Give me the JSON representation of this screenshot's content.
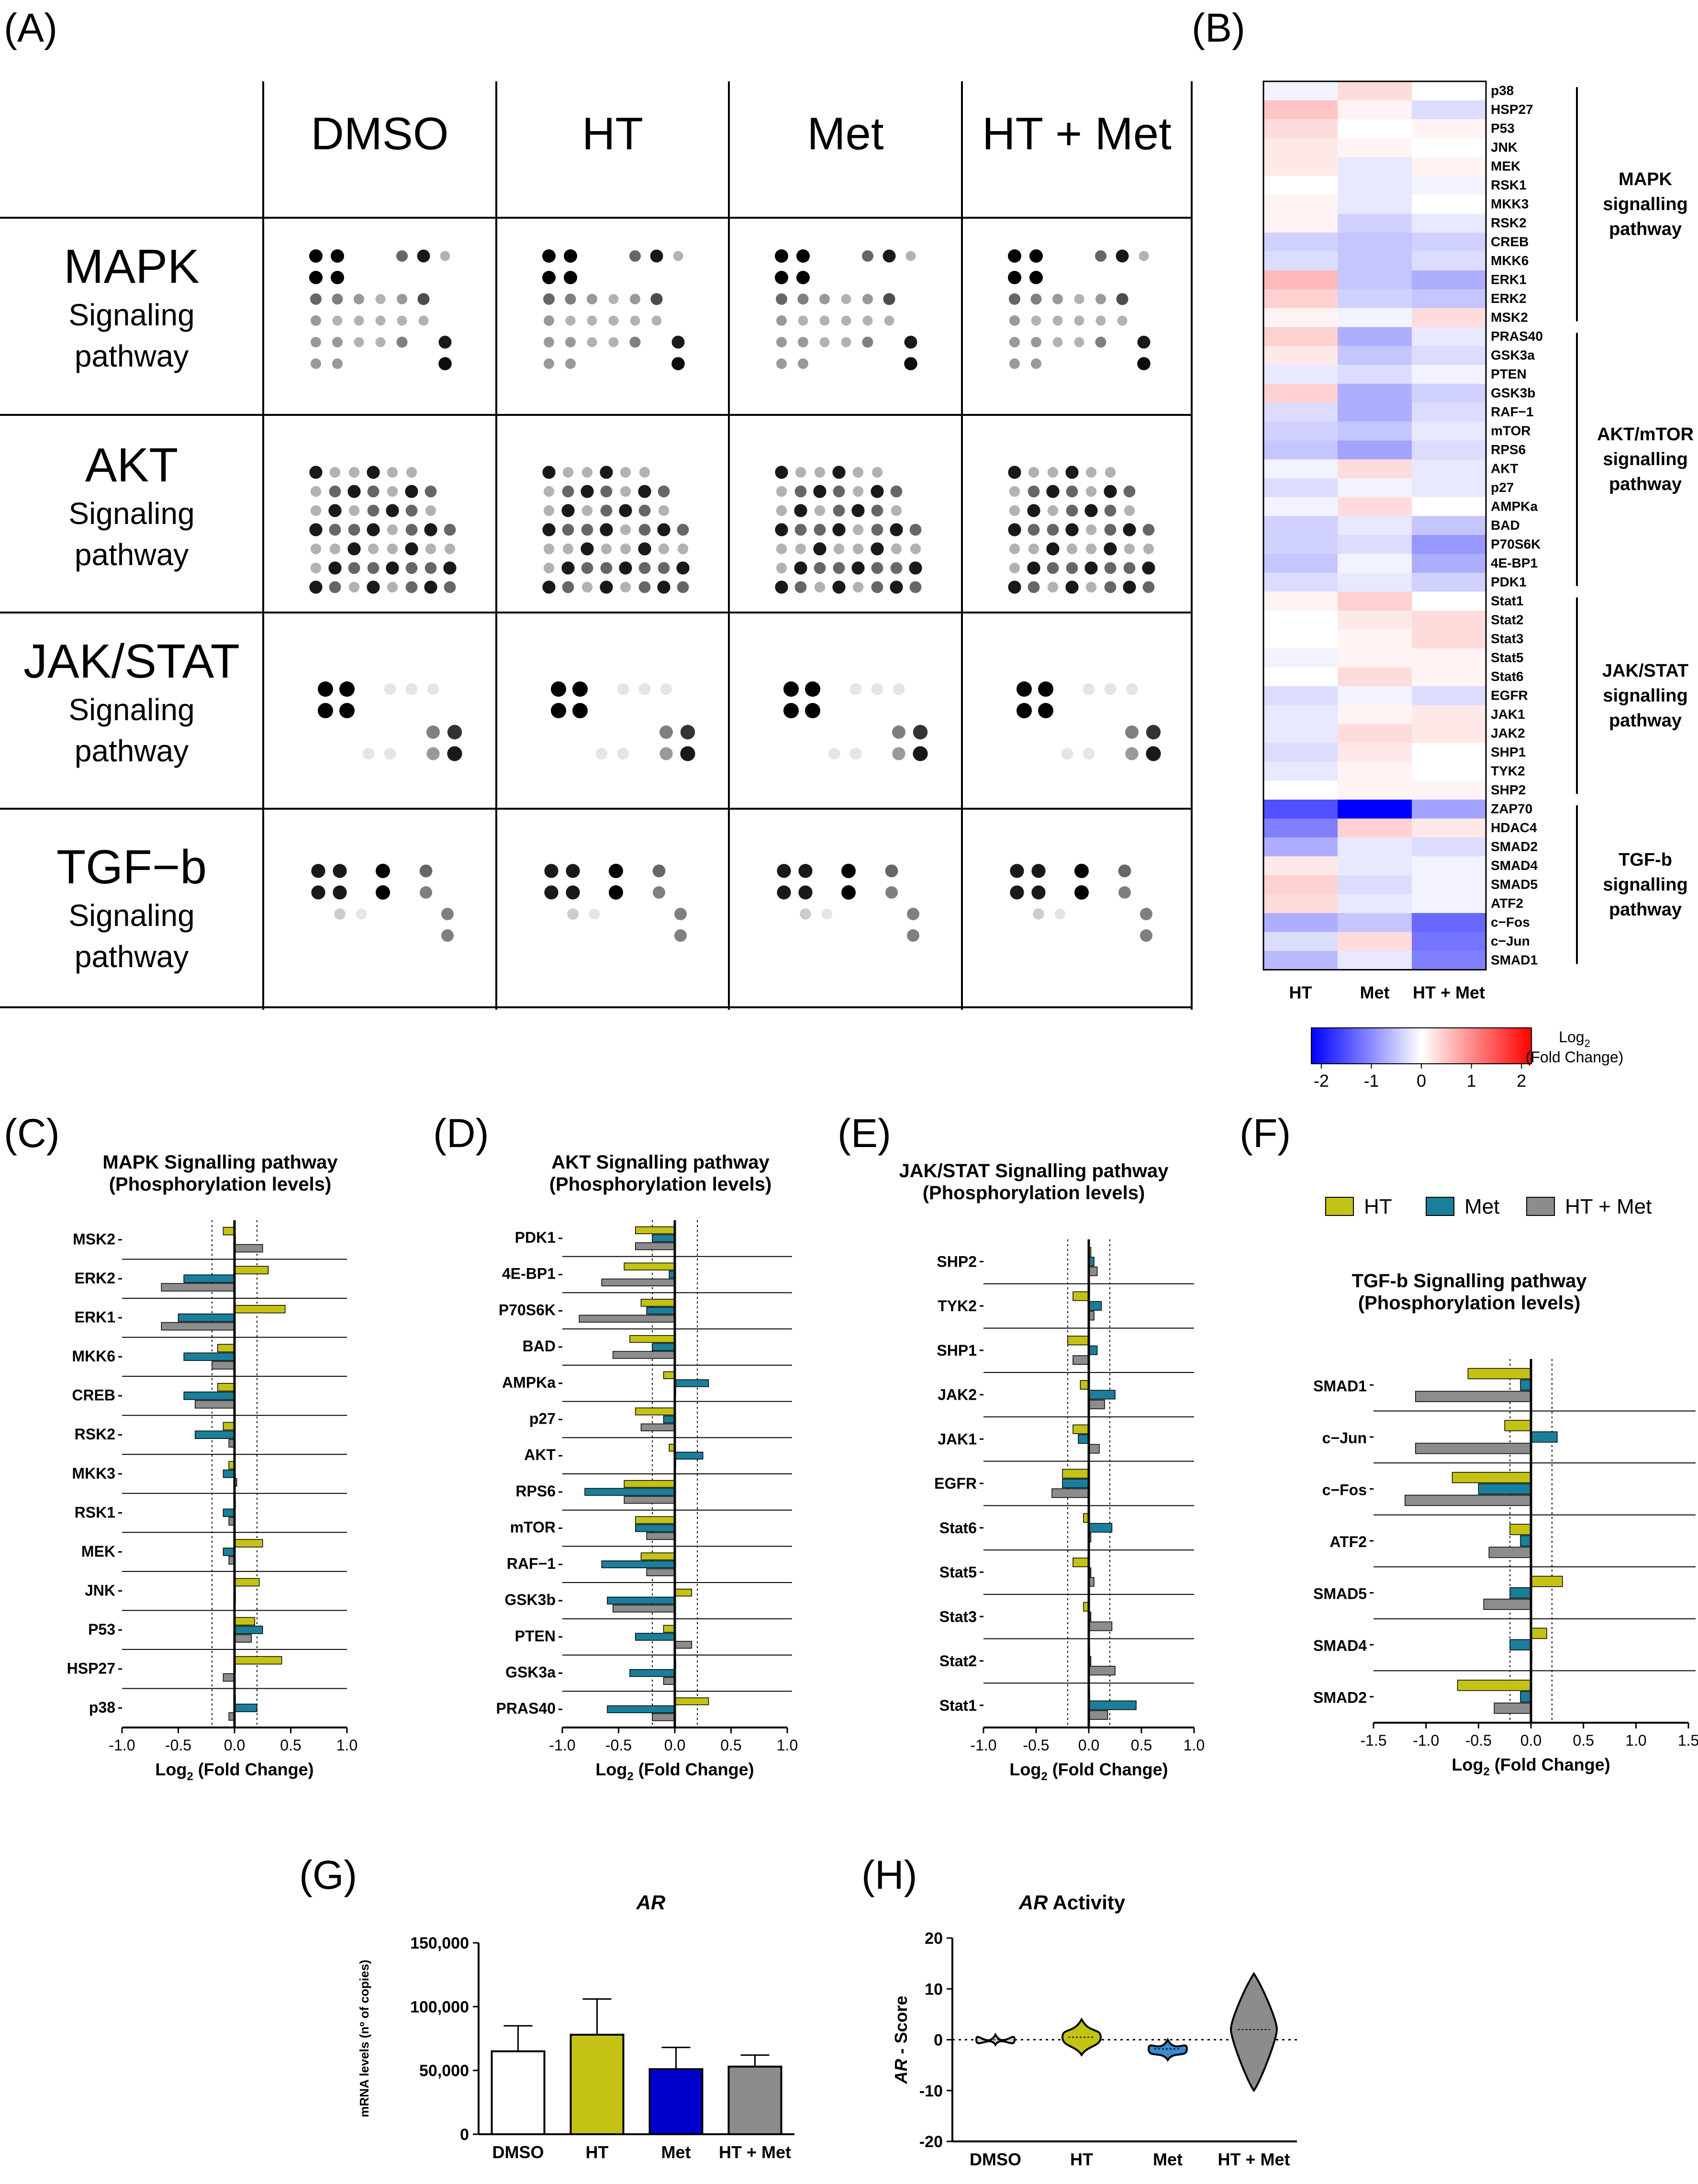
{
  "panels": {
    "A": "(A)",
    "B": "(B)",
    "C": "(C)",
    "D": "(D)",
    "E": "(E)",
    "F": "(F)",
    "G": "(G)",
    "H": "(H)"
  },
  "panelA": {
    "columns": [
      "DMSO",
      "HT",
      "Met",
      "HT + Met"
    ],
    "rows": [
      {
        "name": "MAPK",
        "sub1": "Signaling",
        "sub2": "pathway"
      },
      {
        "name": "AKT",
        "sub1": "Signaling",
        "sub2": "pathway"
      },
      {
        "name": "JAK/STAT",
        "sub1": "Signaling",
        "sub2": "pathway"
      },
      {
        "name": "TGF−b",
        "sub1": "Signaling",
        "sub2": "pathway"
      }
    ]
  },
  "chart_data": [
    {
      "id": "B",
      "type": "heatmap",
      "columns": [
        "HT",
        "Met",
        "HT + Met"
      ],
      "rows": [
        "p38",
        "HSP27",
        "P53",
        "JNK",
        "MEK",
        "RSK1",
        "MKK3",
        "RSK2",
        "CREB",
        "MKK6",
        "ERK1",
        "ERK2",
        "MSK2",
        "PRAS40",
        "GSK3a",
        "PTEN",
        "GSK3b",
        "RAF−1",
        "mTOR",
        "RPS6",
        "AKT",
        "p27",
        "AMPKa",
        "BAD",
        "P70S6K",
        "4E-BP1",
        "PDK1",
        "Stat1",
        "Stat2",
        "Stat3",
        "Stat5",
        "Stat6",
        "EGFR",
        "JAK1",
        "JAK2",
        "SHP1",
        "TYK2",
        "SHP2",
        "ZAP70",
        "HDAC4",
        "SMAD2",
        "SMAD4",
        "SMAD5",
        "ATF2",
        "c−Fos",
        "c−Jun",
        "SMAD1"
      ],
      "values": [
        [
          -0.1,
          0.3,
          0.0
        ],
        [
          0.5,
          0.1,
          -0.3
        ],
        [
          0.3,
          0.0,
          0.1
        ],
        [
          0.2,
          0.1,
          0.0
        ],
        [
          0.2,
          -0.2,
          0.1
        ],
        [
          0.0,
          -0.2,
          -0.1
        ],
        [
          0.1,
          -0.2,
          0.0
        ],
        [
          0.1,
          -0.4,
          -0.2
        ],
        [
          -0.4,
          -0.5,
          -0.4
        ],
        [
          -0.3,
          -0.5,
          -0.3
        ],
        [
          0.6,
          -0.5,
          -0.7
        ],
        [
          0.4,
          -0.4,
          -0.5
        ],
        [
          0.1,
          -0.1,
          0.3
        ],
        [
          0.4,
          -0.7,
          -0.2
        ],
        [
          0.2,
          -0.5,
          -0.3
        ],
        [
          -0.2,
          -0.3,
          -0.1
        ],
        [
          0.4,
          -0.7,
          -0.4
        ],
        [
          -0.3,
          -0.7,
          -0.3
        ],
        [
          -0.4,
          -0.5,
          -0.2
        ],
        [
          -0.5,
          -0.8,
          -0.3
        ],
        [
          -0.1,
          0.3,
          -0.2
        ],
        [
          -0.3,
          -0.1,
          -0.2
        ],
        [
          -0.1,
          0.3,
          0.0
        ],
        [
          -0.4,
          -0.2,
          -0.5
        ],
        [
          -0.4,
          -0.3,
          -0.9
        ],
        [
          -0.5,
          -0.1,
          -0.7
        ],
        [
          -0.3,
          -0.2,
          -0.4
        ],
        [
          0.1,
          0.4,
          0.0
        ],
        [
          0.0,
          0.2,
          0.3
        ],
        [
          0.0,
          0.1,
          0.3
        ],
        [
          -0.1,
          0.1,
          0.1
        ],
        [
          0.0,
          0.3,
          0.1
        ],
        [
          -0.3,
          -0.1,
          -0.3
        ],
        [
          -0.2,
          0.1,
          0.2
        ],
        [
          -0.2,
          0.3,
          0.2
        ],
        [
          -0.3,
          0.2,
          0.0
        ],
        [
          -0.2,
          0.1,
          0.0
        ],
        [
          0.0,
          0.1,
          0.1
        ],
        [
          -1.5,
          -2.2,
          -0.8
        ],
        [
          -1.1,
          0.4,
          0.2
        ],
        [
          -0.7,
          -0.2,
          -0.3
        ],
        [
          0.2,
          -0.2,
          -0.1
        ],
        [
          0.4,
          -0.3,
          -0.1
        ],
        [
          0.3,
          -0.2,
          -0.1
        ],
        [
          -0.7,
          -0.5,
          -1.3
        ],
        [
          -0.3,
          0.3,
          -1.2
        ],
        [
          -0.6,
          -0.2,
          -1.1
        ]
      ],
      "groups": [
        {
          "label1": "MAPK",
          "label2": "signalling",
          "label3": "pathway"
        },
        {
          "label1": "AKT/mTOR",
          "label2": "signalling",
          "label3": "pathway"
        },
        {
          "label1": "JAK/STAT",
          "label2": "signalling",
          "label3": "pathway"
        },
        {
          "label1": "TGF-b",
          "label2": "signalling",
          "label3": "pathway"
        }
      ],
      "colorbar": {
        "ticks": [
          "-2",
          "-1",
          "0",
          "1",
          "2"
        ],
        "title1": "Log",
        "title_sub": "2",
        "title2": "(Fold Change)",
        "min": -2.2,
        "max": 2.2,
        "low_color": "#0000ff",
        "mid_color": "#ffffff",
        "high_color": "#ff0000"
      }
    },
    {
      "id": "C",
      "type": "bar",
      "orientation": "horizontal",
      "title1": "MAPK Signalling pathway",
      "title2": "(Phosphorylation levels)",
      "xlabel": "Log",
      "xlabel_sub": "2",
      "xlabel_end": " (Fold Change)",
      "xlim": [
        -1.0,
        1.0
      ],
      "xticks": [
        "-1.0",
        "-0.5",
        "0.0",
        "0.5",
        "1.0"
      ],
      "categories": [
        "MSK2",
        "ERK2",
        "ERK1",
        "MKK6",
        "CREB",
        "RSK2",
        "MKK3",
        "RSK1",
        "MEK",
        "JNK",
        "P53",
        "HSP27",
        "p38"
      ],
      "series": [
        {
          "name": "HT",
          "color": "#c4c214",
          "values": [
            -0.1,
            0.3,
            0.45,
            -0.15,
            -0.15,
            -0.1,
            -0.05,
            0.0,
            0.25,
            0.22,
            0.18,
            0.42,
            0.0
          ]
        },
        {
          "name": "Met",
          "color": "#1a7f9a",
          "values": [
            0.0,
            -0.45,
            -0.5,
            -0.45,
            -0.45,
            -0.35,
            -0.1,
            -0.1,
            -0.1,
            0.0,
            0.25,
            0.0,
            0.2
          ]
        },
        {
          "name": "HT + Met",
          "color": "#8c8c8c",
          "values": [
            0.25,
            -0.65,
            -0.65,
            -0.2,
            -0.35,
            -0.05,
            0.02,
            -0.05,
            -0.05,
            0.0,
            0.15,
            -0.1,
            -0.05
          ]
        }
      ],
      "threshold": [
        -0.2,
        0.2
      ]
    },
    {
      "id": "D",
      "type": "bar",
      "orientation": "horizontal",
      "title1": "AKT Signalling pathway",
      "title2": "(Phosphorylation levels)",
      "xlabel": "Log",
      "xlabel_sub": "2",
      "xlabel_end": " (Fold Change)",
      "xlim": [
        -1.0,
        1.0
      ],
      "xticks": [
        "-1.0",
        "-0.5",
        "0.0",
        "0.5",
        "1.0"
      ],
      "categories": [
        "PDK1",
        "4E-BP1",
        "P70S6K",
        "BAD",
        "AMPKa",
        "p27",
        "AKT",
        "RPS6",
        "mTOR",
        "RAF−1",
        "GSK3b",
        "PTEN",
        "GSK3a",
        "PRAS40"
      ],
      "series": [
        {
          "name": "HT",
          "color": "#c4c214",
          "values": [
            -0.35,
            -0.45,
            -0.3,
            -0.4,
            -0.1,
            -0.35,
            -0.05,
            -0.45,
            -0.35,
            -0.3,
            0.15,
            -0.1,
            0.0,
            0.3
          ]
        },
        {
          "name": "Met",
          "color": "#1a7f9a",
          "values": [
            -0.2,
            -0.05,
            -0.25,
            -0.2,
            0.3,
            -0.1,
            0.25,
            -0.8,
            -0.35,
            -0.65,
            -0.6,
            -0.35,
            -0.4,
            -0.6
          ]
        },
        {
          "name": "HT + Met",
          "color": "#8c8c8c",
          "values": [
            -0.35,
            -0.65,
            -0.85,
            -0.55,
            0.0,
            -0.3,
            0.0,
            -0.45,
            -0.25,
            -0.25,
            -0.55,
            0.15,
            -0.1,
            -0.2
          ]
        }
      ],
      "threshold": [
        -0.2,
        0.2
      ]
    },
    {
      "id": "E",
      "type": "bar",
      "orientation": "horizontal",
      "title1": "JAK/STAT Signalling pathway",
      "title2": "(Phosphorylation levels)",
      "xlabel": "Log",
      "xlabel_sub": "2",
      "xlabel_end": " (Fold Change)",
      "xlim": [
        -1.0,
        1.0
      ],
      "xticks": [
        "-1.0",
        "-0.5",
        "0.0",
        "0.5",
        "1.0"
      ],
      "categories": [
        "SHP2",
        "TYK2",
        "SHP1",
        "JAK2",
        "JAK1",
        "EGFR",
        "Stat6",
        "Stat5",
        "Stat3",
        "Stat2",
        "Stat1"
      ],
      "series": [
        {
          "name": "HT",
          "color": "#c4c214",
          "values": [
            0.02,
            -0.15,
            -0.2,
            -0.08,
            -0.15,
            -0.25,
            -0.05,
            -0.15,
            -0.05,
            0.0,
            0.0
          ]
        },
        {
          "name": "Met",
          "color": "#1a7f9a",
          "values": [
            0.05,
            0.12,
            0.08,
            0.25,
            -0.1,
            -0.25,
            0.22,
            0.02,
            0.02,
            0.02,
            0.45
          ]
        },
        {
          "name": "HT + Met",
          "color": "#8c8c8c",
          "values": [
            0.08,
            0.05,
            -0.15,
            0.15,
            0.1,
            -0.35,
            0.02,
            0.05,
            0.22,
            0.25,
            0.18
          ]
        }
      ],
      "threshold": [
        -0.2,
        0.2
      ]
    },
    {
      "id": "F",
      "type": "bar",
      "orientation": "horizontal",
      "title1": "TGF-b Signalling pathway",
      "title2": "(Phosphorylation levels)",
      "xlabel": "Log",
      "xlabel_sub": "2",
      "xlabel_end": " (Fold Change)",
      "xlim": [
        -1.5,
        1.5
      ],
      "xticks": [
        "-1.5",
        "-1.0",
        "-0.5",
        "0.0",
        "0.5",
        "1.0",
        "1.5"
      ],
      "legend": [
        "HT",
        "Met",
        "HT + Met"
      ],
      "categories": [
        "SMAD1",
        "c−Jun",
        "c−Fos",
        "ATF2",
        "SMAD5",
        "SMAD4",
        "SMAD2"
      ],
      "series": [
        {
          "name": "HT",
          "color": "#c4c214",
          "values": [
            -0.6,
            -0.25,
            -0.75,
            -0.2,
            0.3,
            0.15,
            -0.7
          ]
        },
        {
          "name": "Met",
          "color": "#1a7f9a",
          "values": [
            -0.1,
            0.25,
            -0.5,
            -0.1,
            -0.2,
            -0.2,
            -0.1
          ]
        },
        {
          "name": "HT + Met",
          "color": "#8c8c8c",
          "values": [
            -1.1,
            -1.1,
            -1.2,
            -0.4,
            -0.45,
            0.0,
            -0.35
          ]
        }
      ],
      "threshold": [
        -0.2,
        0.2
      ]
    },
    {
      "id": "G",
      "type": "bar",
      "title": "AR",
      "ylabel": "mRNA levels (nº of copies)",
      "ylim": [
        0,
        150000
      ],
      "yticks": [
        "0",
        "50,000",
        "100,000",
        "150,000"
      ],
      "categories": [
        "DMSO",
        "HT",
        "Met",
        "HT + Met"
      ],
      "values": [
        65000,
        78000,
        51000,
        53000
      ],
      "errors": [
        20000,
        28000,
        17000,
        9000
      ],
      "colors": [
        "#ffffff",
        "#c4c214",
        "#0000cc",
        "#8c8c8c"
      ]
    },
    {
      "id": "H",
      "type": "violin",
      "title": "AR",
      "title_rest": " Activity",
      "ylabel": "AR",
      "ylabel_rest": " - Score",
      "ylim": [
        -20,
        20
      ],
      "yticks": [
        "-20",
        "-10",
        "0",
        "10",
        "20"
      ],
      "categories": [
        "DMSO",
        "HT",
        "Met",
        "HT + Met"
      ],
      "ranges": [
        [
          -1,
          1
        ],
        [
          -3,
          4
        ],
        [
          -4,
          0
        ],
        [
          -10,
          13
        ]
      ],
      "medians": [
        0,
        0.5,
        -1.8,
        2
      ],
      "colors": [
        "#d0d0d0",
        "#c4c214",
        "#3a8ad0",
        "#8c8c8c"
      ]
    }
  ]
}
